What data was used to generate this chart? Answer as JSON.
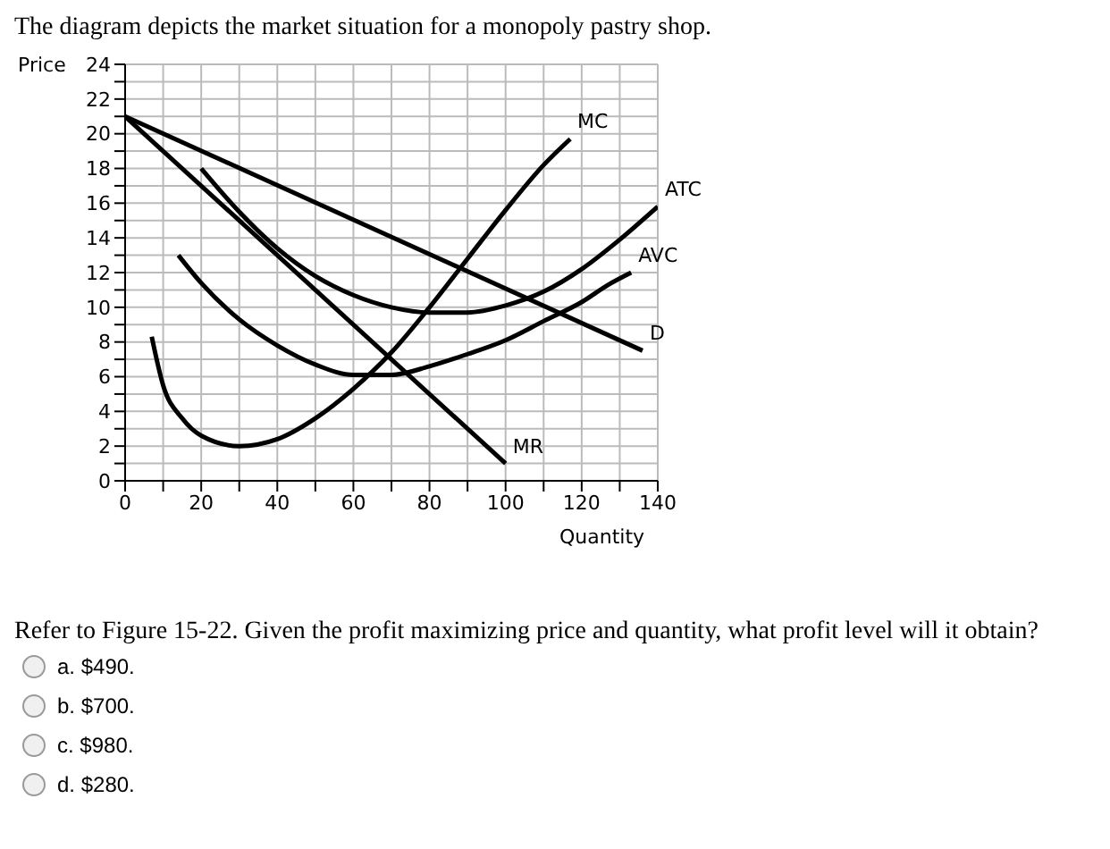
{
  "chart_data": {
    "type": "line",
    "title": "The diagram depicts the market situation for a monopoly pastry shop.",
    "xlabel": "Quantity",
    "ylabel": "Price",
    "xlim": [
      0,
      140
    ],
    "ylim": [
      0,
      24
    ],
    "xticks": [
      0,
      {
        "value": 10,
        "label": null
      },
      20,
      {
        "value": 30,
        "label": null
      },
      40,
      {
        "value": 50,
        "label": null
      },
      60,
      {
        "value": 70,
        "label": null
      },
      80,
      {
        "value": 90,
        "label": null
      },
      100,
      {
        "value": 110,
        "label": null
      },
      120,
      {
        "value": 130,
        "label": null
      },
      140
    ],
    "yticks": [
      0,
      {
        "value": 1,
        "label": null
      },
      2,
      {
        "value": 3,
        "label": null
      },
      4,
      {
        "value": 5,
        "label": null
      },
      6,
      {
        "value": 7,
        "label": null
      },
      8,
      {
        "value": 9,
        "label": null
      },
      10,
      {
        "value": 11,
        "label": null
      },
      12,
      {
        "value": 13,
        "label": null
      },
      14,
      {
        "value": 15,
        "label": null
      },
      16,
      {
        "value": 17,
        "label": null
      },
      18,
      {
        "value": 19,
        "label": null
      },
      20,
      {
        "value": 21,
        "label": null
      },
      22,
      {
        "value": 23,
        "label": null
      },
      24
    ],
    "grid": true,
    "legend": false,
    "marker": "none",
    "line_style": "solid",
    "series": [
      {
        "name": "MC",
        "color": "#000000",
        "x": [
          7,
          10,
          15,
          20,
          30,
          40,
          50,
          60,
          70,
          80,
          90,
          100,
          110,
          117
        ],
        "values": [
          8.3,
          5.5,
          3.6,
          2.6,
          2,
          2.4,
          3.6,
          5.3,
          7.4,
          10,
          12.8,
          15.6,
          18.2,
          19.7
        ]
      },
      {
        "name": "ATC",
        "color": "#000000",
        "x": [
          20,
          30,
          40,
          50,
          60,
          70,
          80,
          90,
          100,
          110,
          120,
          130,
          140
        ],
        "values": [
          18,
          15.5,
          13.4,
          11.8,
          10.7,
          10,
          9.7,
          9.7,
          10.1,
          10.9,
          12.2,
          13.9,
          15.8
        ]
      },
      {
        "name": "AVC",
        "color": "#000000",
        "x": [
          14,
          20,
          30,
          40,
          50,
          60,
          70,
          80,
          90,
          100,
          110,
          120,
          127,
          133
        ],
        "values": [
          13,
          11.4,
          9.3,
          7.8,
          6.7,
          6.1,
          6.1,
          6.6,
          7.3,
          8.1,
          9.2,
          10.3,
          11.3,
          12
        ]
      },
      {
        "name": "D",
        "color": "#000000",
        "x": [
          0,
          136
        ],
        "values": [
          21,
          7.5
        ]
      },
      {
        "name": "MR",
        "color": "#000000",
        "x": [
          0,
          100
        ],
        "values": [
          21,
          1
        ]
      }
    ],
    "annotations": [
      "Refer to Figure 15-22. Given the profit maximizing price and quantity, what profit level will it obtain?",
      "a. $490.",
      "b. $700.",
      "c. $980.",
      "d. $280."
    ]
  }
}
